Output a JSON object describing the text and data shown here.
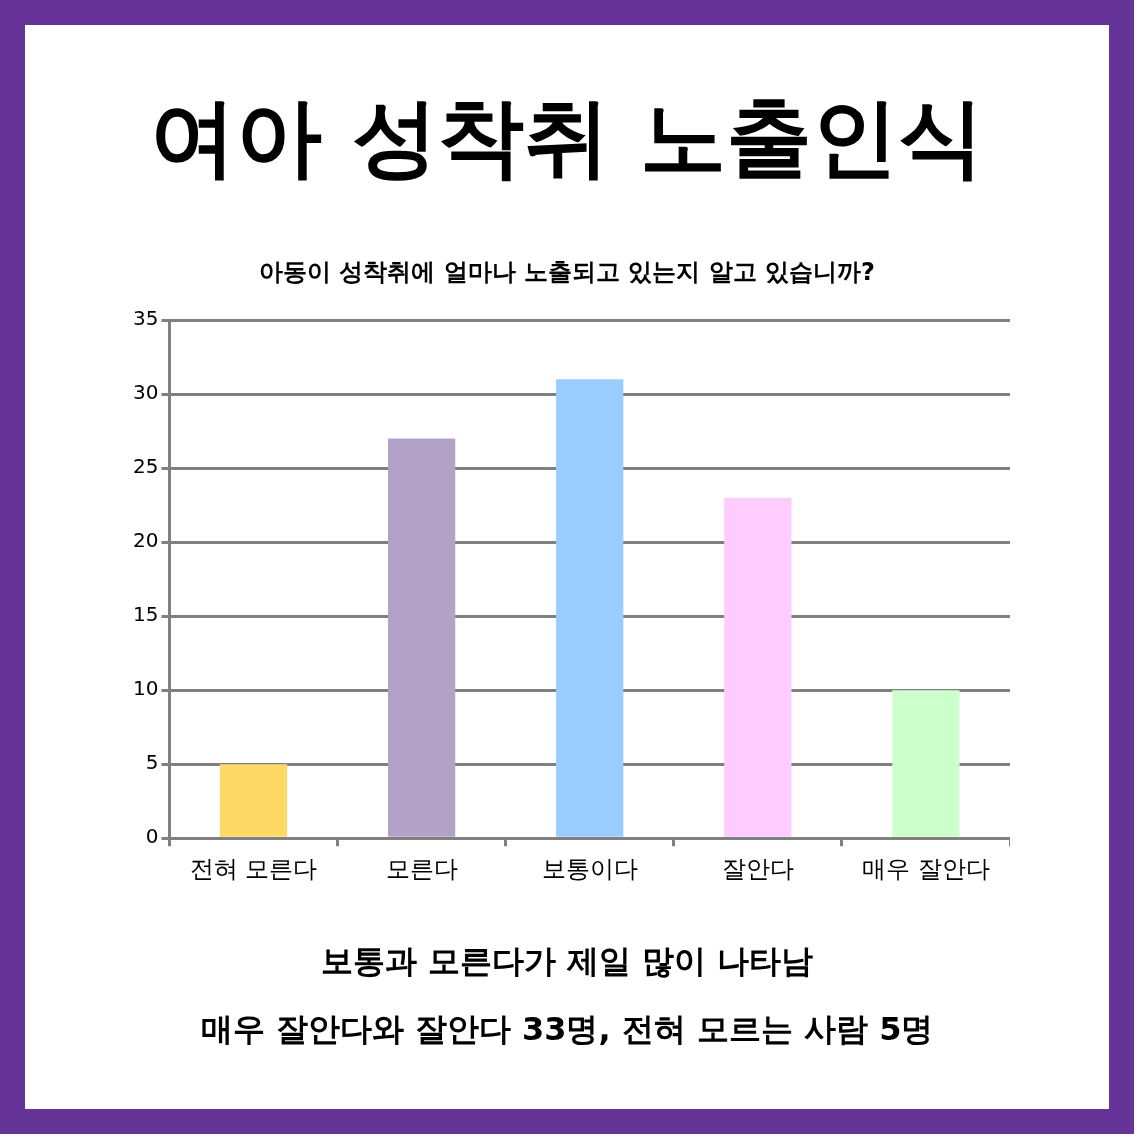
{
  "chart_data": {
    "type": "bar",
    "title": "여아 성착취 노출인식",
    "subtitle": "아동이 성착취에 얼마나 노출되고 있는지 알고 있습니까?",
    "categories": [
      "전혀 모른다",
      "모른다",
      "보통이다",
      "잘안다",
      "매우 잘안다"
    ],
    "values": [
      5,
      27,
      31,
      23,
      10
    ],
    "colors": [
      "#ffd966",
      "#b3a2c7",
      "#99ccff",
      "#ffccff",
      "#ccffcc"
    ],
    "ylim": [
      0,
      35
    ],
    "yticks": [
      0,
      5,
      10,
      15,
      20,
      25,
      30,
      35
    ],
    "grid": "y",
    "annotations": [
      "보통과 모른다가 제일 많이 나타남",
      "매우 잘안다와 잘안다 33명, 전혀 모르는 사람 5명"
    ]
  }
}
